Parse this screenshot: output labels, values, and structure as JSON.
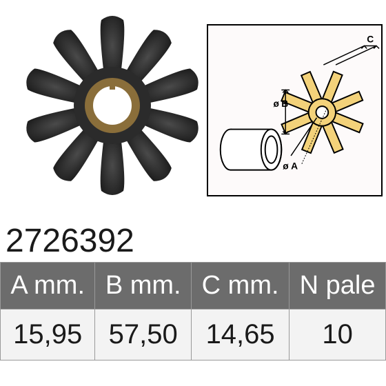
{
  "part_number": "2726392",
  "impeller": {
    "blade_count": 10,
    "outer_color": "#2b2b2b",
    "hub_color": "#8a6e3a",
    "bore_color": "#ffffff"
  },
  "diagram": {
    "labels": {
      "a": "A",
      "b": "B",
      "c": "C",
      "dia": "ø"
    },
    "stroke": "#000000",
    "fill": "#f3d27a"
  },
  "spec_table": {
    "header_bg": "#6c6c6c",
    "header_fg": "#ffffff",
    "row_bg": "#f3f3f3",
    "columns": [
      "A mm.",
      "B mm.",
      "C mm.",
      "N pale"
    ],
    "values": [
      "15,95",
      "57,50",
      "14,65",
      "10"
    ]
  }
}
